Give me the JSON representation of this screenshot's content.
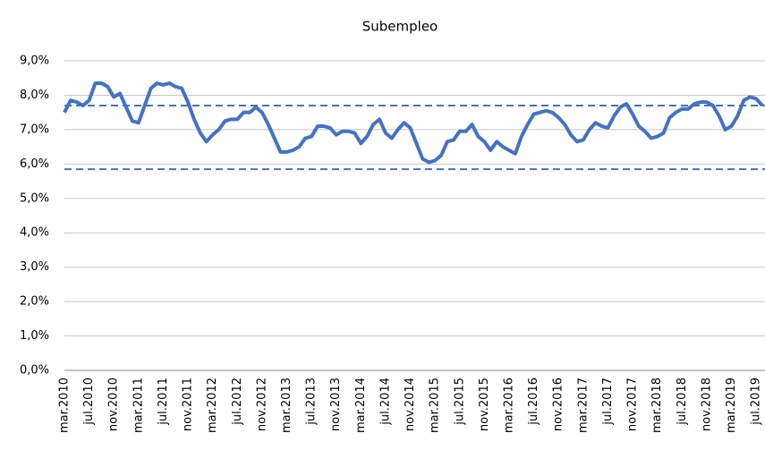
{
  "chart_data": {
    "type": "line",
    "title": "Subempleo",
    "categories": [
      "mar.2010",
      null,
      null,
      null,
      "jul.2010",
      null,
      null,
      null,
      "nov.2010",
      null,
      null,
      null,
      "mar.2011",
      null,
      null,
      null,
      "jul.2011",
      null,
      null,
      null,
      "nov.2011",
      null,
      null,
      null,
      "mar.2012",
      null,
      null,
      null,
      "jul.2012",
      null,
      null,
      null,
      "nov.2012",
      null,
      null,
      null,
      "mar.2013",
      null,
      null,
      null,
      "jul.2013",
      null,
      null,
      null,
      "nov.2013",
      null,
      null,
      null,
      "mar.2014",
      null,
      null,
      null,
      "jul.2014",
      null,
      null,
      null,
      "nov.2014",
      null,
      null,
      null,
      "mar.2015",
      null,
      null,
      null,
      "jul.2015",
      null,
      null,
      null,
      "nov.2015",
      null,
      null,
      null,
      "mar.2016",
      null,
      null,
      null,
      "jul.2016",
      null,
      null,
      null,
      "nov.2016",
      null,
      null,
      null,
      "mar.2017",
      null,
      null,
      null,
      "jul.2017",
      null,
      null,
      null,
      "nov.2017",
      null,
      null,
      null,
      "mar.2018",
      null,
      null,
      null,
      "jul.2018",
      null,
      null,
      null,
      "nov.2018",
      null,
      null,
      null,
      "mar.2019",
      null,
      null,
      null,
      "jul.2019",
      null
    ],
    "series": [
      {
        "color": "#4472c4",
        "values": [
          7.5,
          7.85,
          7.8,
          7.7,
          7.85,
          8.35,
          8.35,
          8.25,
          7.95,
          8.05,
          7.65,
          7.25,
          7.2,
          7.7,
          8.2,
          8.35,
          8.3,
          8.35,
          8.25,
          8.2,
          7.8,
          7.3,
          6.9,
          6.65,
          6.85,
          7.0,
          7.25,
          7.3,
          7.3,
          7.5,
          7.5,
          7.65,
          7.5,
          7.15,
          6.75,
          6.35,
          6.35,
          6.4,
          6.5,
          6.75,
          6.8,
          7.1,
          7.1,
          7.05,
          6.85,
          6.95,
          6.95,
          6.9,
          6.6,
          6.8,
          7.15,
          7.3,
          6.9,
          6.75,
          7.0,
          7.2,
          7.05,
          6.6,
          6.15,
          6.05,
          6.1,
          6.25,
          6.65,
          6.7,
          6.95,
          6.95,
          7.15,
          6.8,
          6.65,
          6.4,
          6.65,
          6.5,
          6.4,
          6.3,
          6.8,
          7.15,
          7.45,
          7.5,
          7.55,
          7.5,
          7.35,
          7.15,
          6.85,
          6.65,
          6.7,
          7.0,
          7.2,
          7.1,
          7.05,
          7.4,
          7.65,
          7.75,
          7.45,
          7.1,
          6.95,
          6.75,
          6.8,
          6.9,
          7.35,
          7.5,
          7.6,
          7.6,
          7.75,
          7.8,
          7.8,
          7.7,
          7.4,
          7.0,
          7.1,
          7.4,
          7.85,
          7.95,
          7.9,
          7.7
        ]
      }
    ],
    "reference_lines": [
      {
        "color": "#4472c4",
        "dashed": true,
        "value": 7.7
      },
      {
        "color": "#4472c4",
        "dashed": true,
        "value": 5.85
      }
    ],
    "ylim": [
      0,
      9
    ],
    "yticks": [
      {
        "value": 0,
        "label": "0,0%"
      },
      {
        "value": 1,
        "label": "1,0%"
      },
      {
        "value": 2,
        "label": "2,0%"
      },
      {
        "value": 3,
        "label": "3,0%"
      },
      {
        "value": 4,
        "label": "4,0%"
      },
      {
        "value": 5,
        "label": "5,0%"
      },
      {
        "value": 6,
        "label": "6,0%"
      },
      {
        "value": 7,
        "label": "7,0%"
      },
      {
        "value": 8,
        "label": "8,0%"
      },
      {
        "value": 9,
        "label": "9,0%"
      }
    ],
    "grid": true
  }
}
